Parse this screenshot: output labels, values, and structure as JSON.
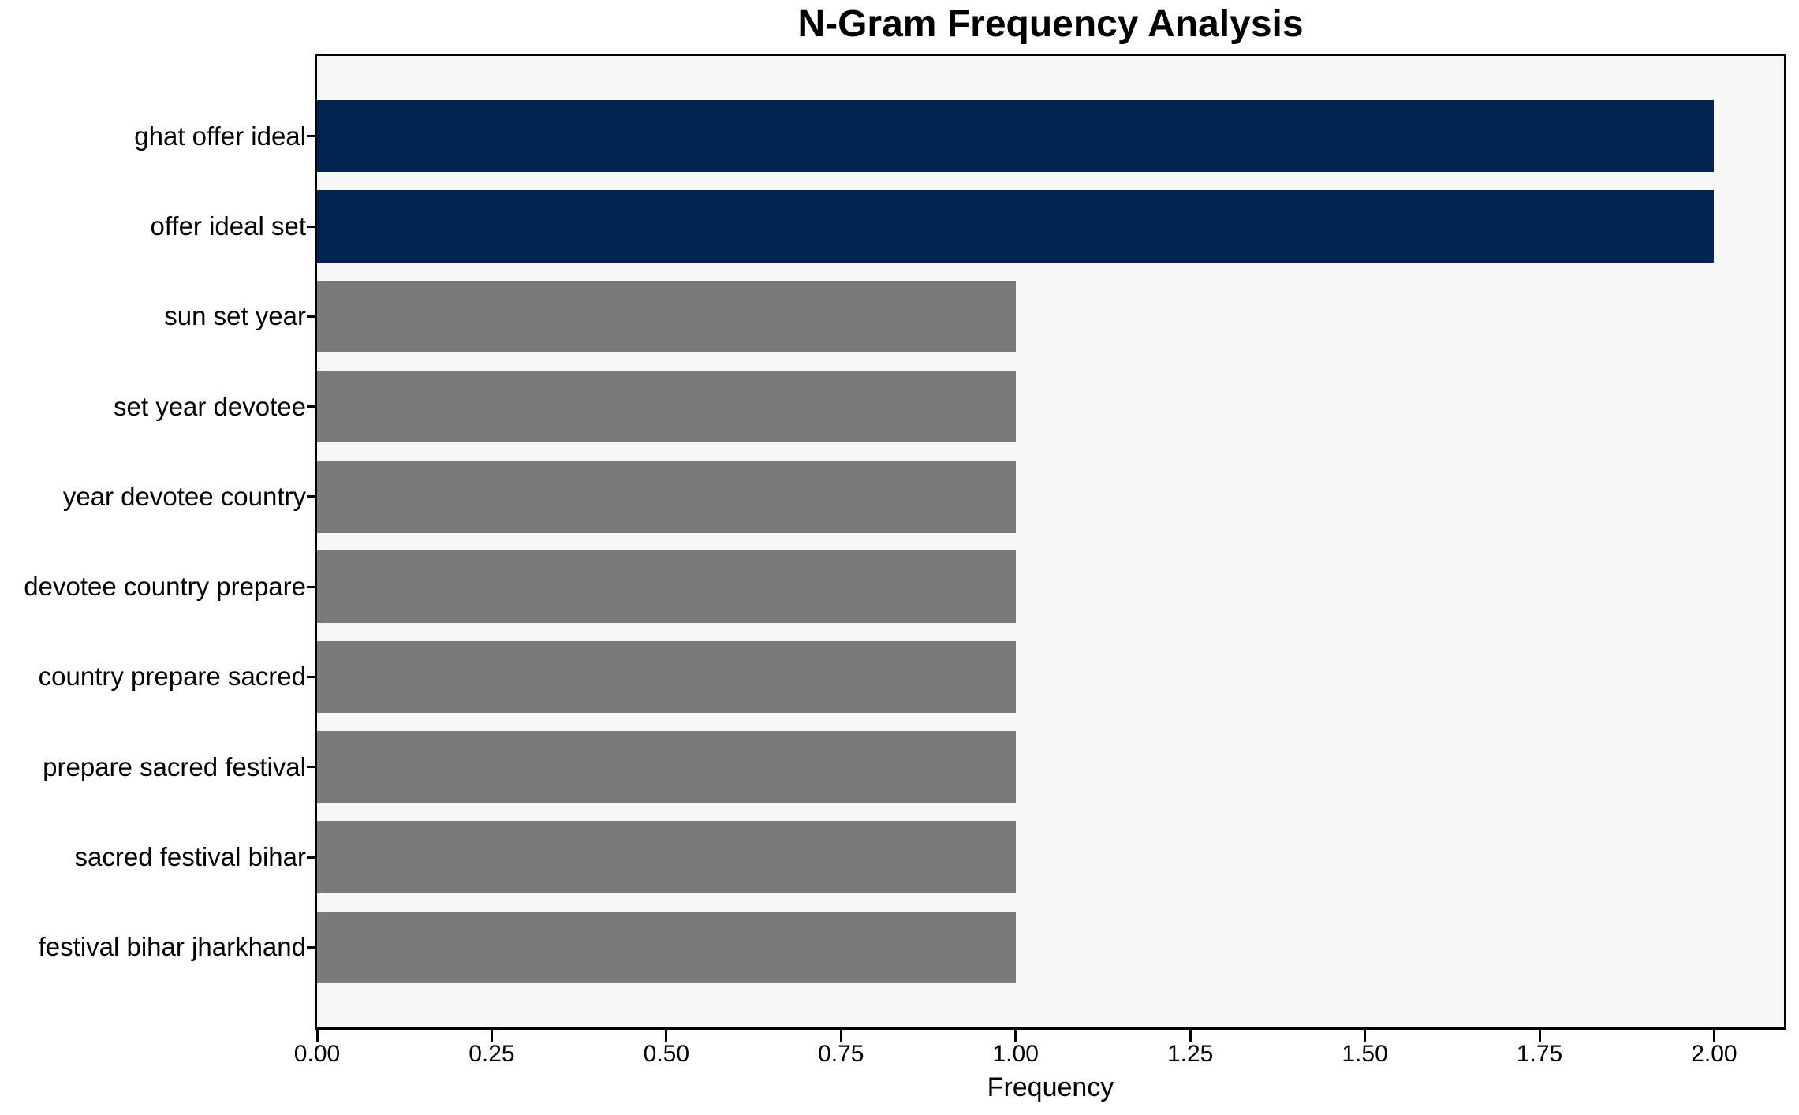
{
  "chart_data": {
    "type": "bar",
    "orientation": "horizontal",
    "title": "N-Gram Frequency Analysis",
    "xlabel": "Frequency",
    "ylabel": "",
    "categories": [
      "ghat offer ideal",
      "offer ideal set",
      "sun set year",
      "set year devotee",
      "year devotee country",
      "devotee country prepare",
      "country prepare sacred",
      "prepare sacred festival",
      "sacred festival bihar",
      "festival bihar jharkhand"
    ],
    "values": [
      2,
      2,
      1,
      1,
      1,
      1,
      1,
      1,
      1,
      1
    ],
    "bar_colors": [
      "#022450",
      "#022450",
      "#7b7a78",
      "#7b7a78",
      "#7b7a78",
      "#7b7a78",
      "#7b7a78",
      "#7b7a78",
      "#7b7a78",
      "#7b7a78"
    ],
    "xticks": [
      "0.00",
      "0.25",
      "0.50",
      "0.75",
      "1.00",
      "1.25",
      "1.50",
      "1.75",
      "2.00"
    ],
    "xtick_values": [
      0,
      0.25,
      0.5,
      0.75,
      1.0,
      1.25,
      1.5,
      1.75,
      2.0
    ],
    "xlim": [
      0,
      2.1
    ],
    "grid": false,
    "legend_position": "none",
    "colors": {
      "highlight": "#022450",
      "default": "#7b7a78",
      "plot_background": "#f8f7f7",
      "figure_background": "#ffffff",
      "axis": "#000000"
    }
  }
}
